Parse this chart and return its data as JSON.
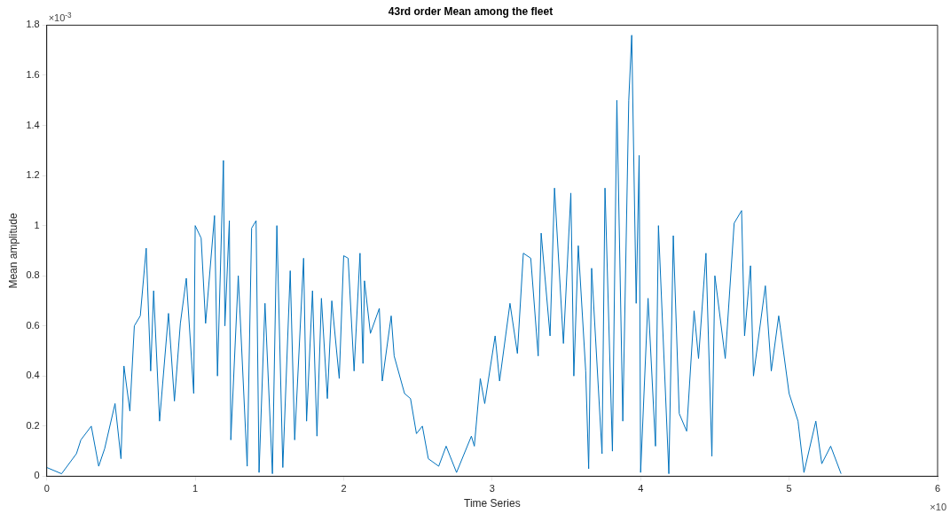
{
  "chart_data": {
    "type": "line",
    "title": "43rd order Mean among the fleet",
    "xlabel": "Time Series",
    "ylabel": "Mean amplitude",
    "annotations": [
      "×10$^{-3}$",
      "×10"
    ],
    "xlim": [
      0,
      6
    ],
    "xticks": [
      0,
      1,
      2,
      3,
      4,
      5,
      6
    ],
    "ylim": [
      0,
      1.8
    ],
    "yticks": [
      0,
      0.2,
      0.4,
      0.6,
      0.8,
      1,
      1.2,
      1.4,
      1.6,
      1.8
    ],
    "grid": false,
    "legend": false,
    "marker": "none",
    "line_style": "solid",
    "series": [
      {
        "color": "#0072bd",
        "x": [
          0,
          0.1,
          0.2,
          0.23,
          0.3,
          0.35,
          0.39,
          0.46,
          0.5,
          0.52,
          0.56,
          0.59,
          0.63,
          0.67,
          0.7,
          0.72,
          0.76,
          0.82,
          0.86,
          0.9,
          0.94,
          0.99,
          1.0,
          1.04,
          1.07,
          1.13,
          1.15,
          1.19,
          1.2,
          1.23,
          1.24,
          1.29,
          1.35,
          1.38,
          1.41,
          1.43,
          1.47,
          1.52,
          1.55,
          1.59,
          1.64,
          1.67,
          1.73,
          1.75,
          1.79,
          1.82,
          1.85,
          1.89,
          1.92,
          1.97,
          2.0,
          2.03,
          2.07,
          2.11,
          2.13,
          2.14,
          2.18,
          2.24,
          2.26,
          2.32,
          2.34,
          2.41,
          2.45,
          2.49,
          2.53,
          2.57,
          2.64,
          2.69,
          2.76,
          2.86,
          2.88,
          2.92,
          2.95,
          3.02,
          3.05,
          3.12,
          3.17,
          3.21,
          3.26,
          3.31,
          3.33,
          3.39,
          3.42,
          3.48,
          3.53,
          3.55,
          3.58,
          3.63,
          3.65,
          3.67,
          3.74,
          3.76,
          3.81,
          3.84,
          3.88,
          3.92,
          3.94,
          3.97,
          3.99,
          4.0,
          4.05,
          4.1,
          4.12,
          4.19,
          4.22,
          4.26,
          4.31,
          4.36,
          4.39,
          4.44,
          4.48,
          4.5,
          4.57,
          4.63,
          4.68,
          4.7,
          4.74,
          4.76,
          4.84,
          4.88,
          4.93,
          5.0,
          5.06,
          5.1,
          5.18,
          5.22,
          5.28,
          5.35
        ],
        "values": [
          0.035,
          0.01,
          0.09,
          0.145,
          0.2,
          0.04,
          0.11,
          0.29,
          0.07,
          0.44,
          0.26,
          0.6,
          0.64,
          0.91,
          0.42,
          0.74,
          0.22,
          0.65,
          0.3,
          0.61,
          0.79,
          0.33,
          1.0,
          0.95,
          0.61,
          1.04,
          0.4,
          1.26,
          0.6,
          1.02,
          0.145,
          0.8,
          0.04,
          0.99,
          1.02,
          0.015,
          0.69,
          0.01,
          1.0,
          0.035,
          0.82,
          0.145,
          0.87,
          0.22,
          0.74,
          0.16,
          0.71,
          0.31,
          0.7,
          0.39,
          0.88,
          0.87,
          0.42,
          0.89,
          0.45,
          0.78,
          0.57,
          0.67,
          0.38,
          0.64,
          0.48,
          0.33,
          0.31,
          0.17,
          0.2,
          0.07,
          0.04,
          0.12,
          0.015,
          0.16,
          0.12,
          0.39,
          0.29,
          0.56,
          0.38,
          0.69,
          0.49,
          0.89,
          0.87,
          0.48,
          0.97,
          0.56,
          1.15,
          0.53,
          1.13,
          0.4,
          0.92,
          0.42,
          0.03,
          0.83,
          0.09,
          1.15,
          0.1,
          1.5,
          0.22,
          1.5,
          1.76,
          0.69,
          1.28,
          0.015,
          0.71,
          0.12,
          1.0,
          0.01,
          0.96,
          0.25,
          0.18,
          0.66,
          0.47,
          0.89,
          0.08,
          0.8,
          0.47,
          1.01,
          1.06,
          0.56,
          0.84,
          0.4,
          0.76,
          0.42,
          0.64,
          0.33,
          0.22,
          0.015,
          0.22,
          0.05,
          0.12,
          0.01
        ]
      }
    ]
  }
}
